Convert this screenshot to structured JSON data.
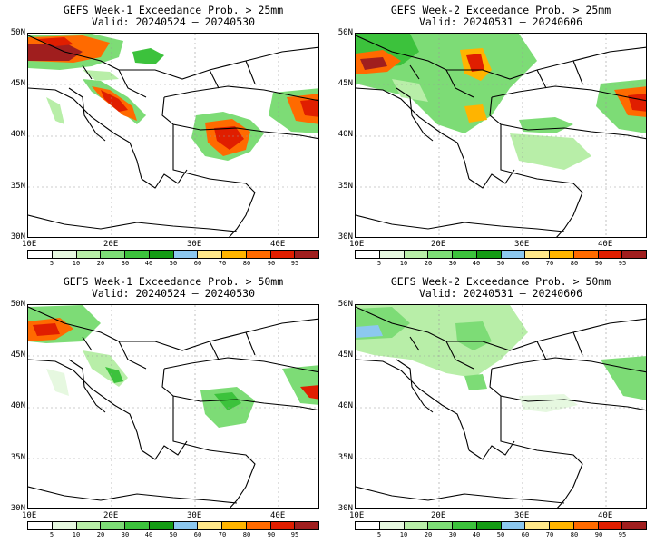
{
  "panels": [
    {
      "title": "GEFS Week-1 Exceedance Prob. > 25mm",
      "valid": "Valid: 20240524 — 20240530"
    },
    {
      "title": "GEFS Week-2 Exceedance Prob. > 25mm",
      "valid": "Valid: 20240531 — 20240606"
    },
    {
      "title": "GEFS Week-1 Exceedance Prob. > 50mm",
      "valid": "Valid: 20240524 — 20240530"
    },
    {
      "title": "GEFS Week-2 Exceedance Prob. > 50mm",
      "valid": "Valid: 20240531 — 20240606"
    }
  ],
  "lat_labels": [
    "50N",
    "45N",
    "40N",
    "35N",
    "30N"
  ],
  "lon_labels": [
    "10E",
    "20E",
    "30E",
    "40E"
  ],
  "colorbar": {
    "levels": [
      "5",
      "10",
      "20",
      "30",
      "40",
      "50",
      "60",
      "70",
      "80",
      "90",
      "95"
    ],
    "colors": [
      "#ffffff",
      "#e6f8e0",
      "#b8eea8",
      "#7ddc76",
      "#3cc23c",
      "#149a14",
      "#8cc8ef",
      "#ffe88a",
      "#ffb400",
      "#ff6a00",
      "#e01e00",
      "#a01e1e"
    ]
  }
}
